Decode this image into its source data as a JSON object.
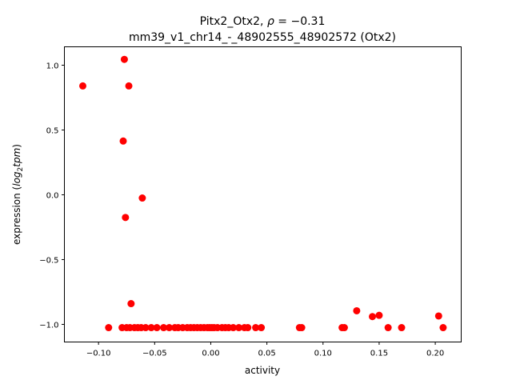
{
  "chart_data": {
    "type": "scatter",
    "title_line1_prefix": "Pitx2_Otx2, ",
    "title_rho": "ρ",
    "title_rho_value": " = −0.31",
    "title_line2": "mm39_v1_chr14_-_48902555_48902572 (Otx2)",
    "xlabel": "activity",
    "ylabel_prefix": "expression (",
    "ylabel_math": "log",
    "ylabel_sub": "2",
    "ylabel_math2": "tpm",
    "ylabel_suffix": ")",
    "xlim": [
      -0.1304,
      0.2231
    ],
    "ylim": [
      -1.136,
      1.142
    ],
    "xticks": [
      -0.1,
      -0.05,
      0.0,
      0.05,
      0.1,
      0.15,
      0.2
    ],
    "xtick_labels": [
      "−0.10",
      "−0.05",
      "0.00",
      "0.05",
      "0.10",
      "0.15",
      "0.20"
    ],
    "yticks": [
      1.0,
      0.5,
      0.0,
      -0.5,
      -1.0
    ],
    "ytick_labels": [
      "1.0",
      "0.5",
      "0.0",
      "−0.5",
      "−1.0"
    ],
    "grid": false,
    "color": "#ff0000",
    "points": [
      [
        -0.114,
        0.84
      ],
      [
        -0.077,
        1.045
      ],
      [
        -0.073,
        0.84
      ],
      [
        -0.078,
        0.415
      ],
      [
        -0.061,
        -0.025
      ],
      [
        -0.076,
        -0.175
      ],
      [
        -0.071,
        -0.84
      ],
      [
        0.13,
        -0.895
      ],
      [
        0.144,
        -0.94
      ],
      [
        0.15,
        -0.93
      ],
      [
        0.203,
        -0.935
      ],
      [
        -0.091,
        -1.025
      ],
      [
        -0.079,
        -1.025
      ],
      [
        -0.075,
        -1.025
      ],
      [
        -0.072,
        -1.025
      ],
      [
        -0.068,
        -1.025
      ],
      [
        -0.065,
        -1.025
      ],
      [
        -0.062,
        -1.025
      ],
      [
        -0.058,
        -1.025
      ],
      [
        -0.053,
        -1.025
      ],
      [
        -0.048,
        -1.025
      ],
      [
        -0.042,
        -1.025
      ],
      [
        -0.037,
        -1.025
      ],
      [
        -0.032,
        -1.025
      ],
      [
        -0.029,
        -1.025
      ],
      [
        -0.025,
        -1.025
      ],
      [
        -0.021,
        -1.025
      ],
      [
        -0.018,
        -1.025
      ],
      [
        -0.015,
        -1.025
      ],
      [
        -0.012,
        -1.025
      ],
      [
        -0.009,
        -1.025
      ],
      [
        -0.006,
        -1.025
      ],
      [
        -0.003,
        -1.025
      ],
      [
        -0.001,
        -1.025
      ],
      [
        0.001,
        -1.025
      ],
      [
        0.003,
        -1.025
      ],
      [
        0.006,
        -1.025
      ],
      [
        0.01,
        -1.025
      ],
      [
        0.013,
        -1.025
      ],
      [
        0.016,
        -1.025
      ],
      [
        0.02,
        -1.025
      ],
      [
        0.025,
        -1.025
      ],
      [
        0.03,
        -1.025
      ],
      [
        0.033,
        -1.025
      ],
      [
        0.04,
        -1.025
      ],
      [
        0.045,
        -1.025
      ],
      [
        0.079,
        -1.025
      ],
      [
        0.081,
        -1.025
      ],
      [
        0.117,
        -1.025
      ],
      [
        0.119,
        -1.025
      ],
      [
        0.158,
        -1.025
      ],
      [
        0.17,
        -1.025
      ],
      [
        0.207,
        -1.025
      ]
    ]
  }
}
